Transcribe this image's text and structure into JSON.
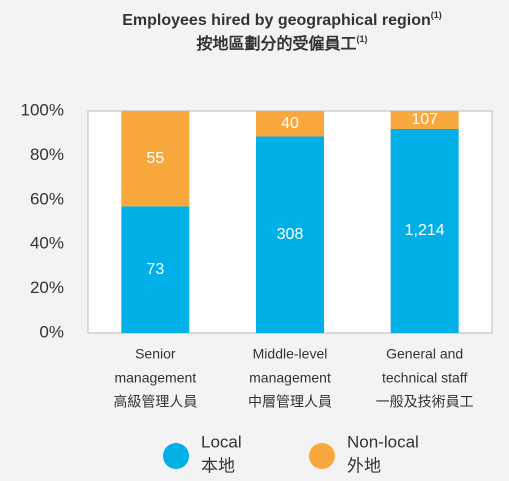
{
  "chart_data": {
    "type": "bar",
    "stacked": "percent",
    "title": {
      "text": "Employees hired by geographical region",
      "note": "(1)"
    },
    "subtitle": {
      "text": "按地區劃分的受僱員工",
      "note": "(1)"
    },
    "categories": [
      [
        "Senior",
        "management",
        "高級管理人員"
      ],
      [
        "Middle-level",
        "management",
        "中層管理人員"
      ],
      [
        "General and",
        "technical staff",
        "一般及技術員工"
      ]
    ],
    "series": [
      {
        "name": [
          "Local",
          "本地"
        ],
        "color": "#00b0e6",
        "values": [
          73,
          308,
          1214
        ],
        "value_labels": [
          "73",
          "308",
          "1,214"
        ]
      },
      {
        "name": [
          "Non-local",
          "外地"
        ],
        "color": "#f9a83e",
        "values": [
          55,
          40,
          107
        ],
        "value_labels": [
          "55",
          "40",
          "107"
        ]
      }
    ],
    "ylim": [
      0,
      100
    ],
    "yticks": [
      {
        "value": 0,
        "label": "0%"
      },
      {
        "value": 20,
        "label": "20%"
      },
      {
        "value": 40,
        "label": "40%"
      },
      {
        "value": 60,
        "label": "60%"
      },
      {
        "value": 80,
        "label": "80%"
      },
      {
        "value": 100,
        "label": "100%"
      }
    ],
    "grid": false
  }
}
